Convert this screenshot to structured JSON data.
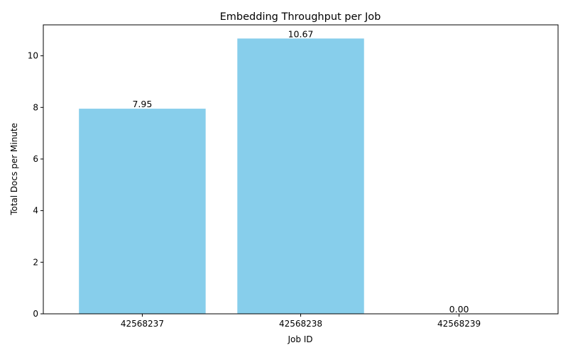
{
  "chart_data": {
    "type": "bar",
    "title": "Embedding Throughput per Job",
    "xlabel": "Job ID",
    "ylabel": "Total Docs per Minute",
    "categories": [
      "42568237",
      "42568238",
      "42568239"
    ],
    "values": [
      7.95,
      10.67,
      0.0
    ],
    "data_labels": [
      "7.95",
      "10.67",
      "0.00"
    ],
    "ylim": [
      0,
      11.2
    ],
    "yticks": [
      0,
      2,
      4,
      6,
      8,
      10
    ],
    "bar_color": "#87CEEB",
    "grid": false
  }
}
